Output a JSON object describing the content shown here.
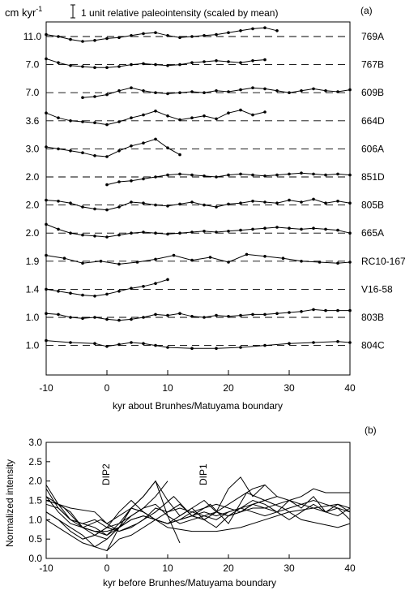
{
  "chart_data": [
    {
      "type": "line",
      "panel_label": "(a)",
      "unit_label": "cm kyr",
      "unit_exponent": "-1",
      "scale_note": "1 unit relative paleointensity (scaled by mean)",
      "xlabel": "kyr about Brunhes/Matuyama boundary",
      "xlim": [
        -10,
        40
      ],
      "xticks": [
        "-10",
        "0",
        "10",
        "20",
        "30",
        "40"
      ],
      "series": [
        {
          "name": "769A",
          "rate": "11.0",
          "offset": 11.0,
          "x": [
            -10,
            -8,
            -6,
            -4,
            -2,
            0,
            2,
            4,
            6,
            8,
            10,
            12,
            14,
            16,
            18,
            20,
            22,
            24,
            26,
            28
          ],
          "y": [
            1.2,
            1.0,
            0.7,
            0.5,
            0.6,
            0.8,
            0.9,
            1.1,
            1.3,
            1.4,
            1.1,
            0.9,
            1.0,
            1.1,
            1.2,
            1.4,
            1.6,
            1.8,
            1.9,
            1.6
          ]
        },
        {
          "name": "767B",
          "rate": "7.0",
          "offset": 7.0,
          "x": [
            -10,
            -8,
            -6,
            -4,
            -2,
            0,
            2,
            4,
            6,
            8,
            10,
            12,
            14,
            16,
            18,
            20,
            22,
            24,
            26
          ],
          "y": [
            1.6,
            1.2,
            0.9,
            0.8,
            0.7,
            0.7,
            0.8,
            1.0,
            1.1,
            1.0,
            0.9,
            1.0,
            1.2,
            1.3,
            1.4,
            1.3,
            1.2,
            1.4,
            1.5
          ]
        },
        {
          "name": "609B",
          "rate": "7.0",
          "offset": 7.0,
          "x": [
            -4,
            -2,
            0,
            2,
            4,
            6,
            8,
            10,
            12,
            14,
            16,
            18,
            20,
            22,
            24,
            26,
            28,
            30,
            32,
            34,
            36,
            38,
            40
          ],
          "y": [
            0.5,
            0.6,
            0.8,
            1.2,
            1.5,
            1.2,
            1.0,
            0.9,
            1.0,
            1.1,
            1.0,
            1.2,
            1.1,
            1.3,
            1.5,
            1.4,
            1.2,
            1.0,
            1.2,
            1.4,
            1.2,
            1.1,
            1.3
          ]
        },
        {
          "name": "664D",
          "rate": "3.6",
          "offset": 3.6,
          "x": [
            -10,
            -8,
            -6,
            -4,
            -2,
            0,
            2,
            4,
            6,
            8,
            10,
            12,
            14,
            16,
            18,
            20,
            22,
            24,
            26
          ],
          "y": [
            1.8,
            1.3,
            1.0,
            0.9,
            0.8,
            0.6,
            0.9,
            1.3,
            1.6,
            2.0,
            1.5,
            1.1,
            1.3,
            1.5,
            1.2,
            1.8,
            2.1,
            1.6,
            1.9
          ]
        },
        {
          "name": "606A",
          "rate": "3.0",
          "offset": 3.0,
          "x": [
            -10,
            -8,
            -6,
            -4,
            -2,
            0,
            2,
            4,
            6,
            8,
            10,
            12
          ],
          "y": [
            1.2,
            1.0,
            0.8,
            0.6,
            0.3,
            0.2,
            0.8,
            1.3,
            1.6,
            2.0,
            1.1,
            0.4
          ]
        },
        {
          "name": "851D",
          "rate": "2.0",
          "offset": 2.0,
          "x": [
            0,
            2,
            4,
            6,
            8,
            10,
            12,
            14,
            16,
            18,
            20,
            22,
            24,
            26,
            28,
            30,
            32,
            34,
            36,
            38,
            40
          ],
          "y": [
            0.2,
            0.5,
            0.6,
            0.8,
            1.0,
            1.2,
            1.3,
            1.2,
            1.1,
            1.0,
            1.2,
            1.3,
            1.2,
            1.1,
            1.2,
            1.3,
            1.4,
            1.3,
            1.2,
            1.3,
            1.2
          ]
        },
        {
          "name": "805B",
          "rate": "2.0",
          "offset": 2.0,
          "x": [
            -10,
            -8,
            -6,
            -4,
            -2,
            0,
            2,
            4,
            6,
            8,
            10,
            12,
            14,
            16,
            18,
            20,
            22,
            24,
            26,
            28,
            30,
            32,
            34,
            36,
            38,
            40
          ],
          "y": [
            1.5,
            1.4,
            1.2,
            0.8,
            0.6,
            0.5,
            0.8,
            1.3,
            1.2,
            1.0,
            0.9,
            1.1,
            1.3,
            1.0,
            0.8,
            1.1,
            1.2,
            1.4,
            1.3,
            1.2,
            1.5,
            1.3,
            1.6,
            1.2,
            1.4,
            1.2
          ]
        },
        {
          "name": "665A",
          "rate": "2.0",
          "offset": 2.0,
          "x": [
            -10,
            -8,
            -6,
            -4,
            -2,
            0,
            2,
            4,
            6,
            8,
            10,
            12,
            14,
            16,
            18,
            20,
            22,
            24,
            26,
            28,
            30,
            32,
            34,
            36,
            38,
            40
          ],
          "y": [
            1.9,
            1.4,
            1.0,
            0.8,
            0.7,
            0.6,
            0.8,
            1.0,
            1.1,
            1.0,
            0.9,
            1.0,
            1.1,
            1.2,
            1.1,
            1.2,
            1.3,
            1.4,
            1.5,
            1.6,
            1.5,
            1.4,
            1.5,
            1.4,
            1.3,
            1.0
          ]
        },
        {
          "name": "RC10-167",
          "rate": "1.9",
          "offset": 1.9,
          "x": [
            -10,
            -7,
            -4,
            -1,
            2,
            5,
            8,
            11,
            14,
            17,
            20,
            23,
            26,
            29,
            32,
            35,
            38,
            40
          ],
          "y": [
            1.6,
            1.3,
            0.8,
            1.0,
            0.7,
            0.9,
            1.2,
            1.6,
            1.1,
            1.4,
            0.9,
            1.7,
            1.5,
            1.3,
            1.0,
            0.9,
            0.8,
            0.9
          ]
        },
        {
          "name": "V16-58",
          "rate": "1.4",
          "offset": 1.4,
          "x": [
            -10,
            -8,
            -6,
            -4,
            -2,
            0,
            2,
            4,
            6,
            8,
            10
          ],
          "y": [
            1.0,
            0.8,
            0.6,
            0.4,
            0.3,
            0.5,
            0.8,
            1.1,
            1.3,
            1.6,
            2.0
          ]
        },
        {
          "name": "803B",
          "rate": "1.0",
          "offset": 1.0,
          "x": [
            -10,
            -8,
            -6,
            -4,
            -2,
            0,
            2,
            4,
            6,
            8,
            10,
            12,
            14,
            16,
            18,
            20,
            22,
            24,
            26,
            28,
            30,
            32,
            34,
            36,
            38,
            40
          ],
          "y": [
            1.4,
            1.3,
            1.0,
            0.9,
            1.0,
            0.8,
            0.7,
            0.8,
            1.0,
            1.3,
            1.2,
            1.4,
            1.1,
            1.0,
            1.2,
            1.1,
            1.2,
            1.3,
            1.3,
            1.4,
            1.5,
            1.6,
            1.8,
            1.7,
            1.7,
            1.7
          ]
        },
        {
          "name": "804C",
          "rate": "1.0",
          "offset": 1.0,
          "x": [
            -10,
            -6,
            -2,
            0,
            2,
            4,
            6,
            8,
            10,
            14,
            18,
            22,
            26,
            30,
            34,
            38,
            40
          ],
          "y": [
            1.5,
            1.3,
            1.2,
            0.9,
            1.1,
            1.3,
            1.2,
            1.0,
            0.8,
            0.7,
            0.7,
            0.8,
            1.0,
            1.2,
            1.3,
            1.4,
            1.3
          ]
        }
      ]
    },
    {
      "type": "line",
      "panel_label": "(b)",
      "xlabel": "kyr before  Brunhes/Matuyama boundary",
      "ylabel": "Normalized intensity",
      "xlim": [
        -10,
        40
      ],
      "ylim": [
        0,
        3
      ],
      "xticks": [
        "-10",
        "0",
        "10",
        "20",
        "30",
        "40"
      ],
      "yticks": [
        "0.0",
        "0.5",
        "1.0",
        "1.5",
        "2.0",
        "2.5",
        "3.0"
      ],
      "annotations": [
        "DIP2",
        "DIP1"
      ]
    }
  ]
}
